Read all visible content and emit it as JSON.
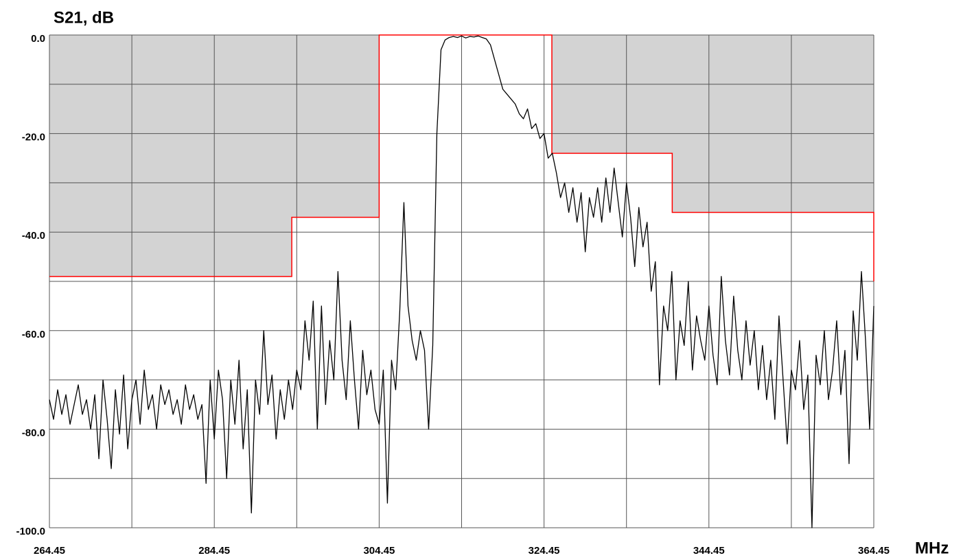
{
  "chart_data": {
    "type": "line",
    "title": "S21, dB",
    "x_label": "MHz",
    "xlim": [
      264.45,
      364.45
    ],
    "ylim": [
      -100,
      0
    ],
    "xticks": [
      264.45,
      284.45,
      304.45,
      324.45,
      344.45,
      364.45
    ],
    "yticks": [
      {
        "value": 0,
        "label": "0.0"
      },
      {
        "value": -20,
        "label": "-20.0"
      },
      {
        "value": -40,
        "label": "-40.0"
      },
      {
        "value": -60,
        "label": "-60.0"
      },
      {
        "value": -80,
        "label": "-80.0"
      },
      {
        "value": -100,
        "label": "-100.0"
      }
    ],
    "xgrid": [
      264.45,
      274.45,
      284.45,
      294.45,
      304.45,
      314.45,
      324.45,
      334.45,
      344.45,
      354.45,
      364.45
    ],
    "ygrid": [
      0,
      -10,
      -20,
      -30,
      -40,
      -50,
      -60,
      -70,
      -80,
      -90,
      -100
    ],
    "grid": true,
    "mask": {
      "color": "#ff0000",
      "fill": "#d3d3d3",
      "x": [
        264.45,
        293.85,
        293.85,
        304.45,
        304.45,
        325.4,
        325.4,
        340,
        340,
        364.45,
        364.45
      ],
      "values": [
        -49,
        -49,
        -37,
        -37,
        0,
        0,
        -24,
        -24,
        -36,
        -36,
        -50
      ]
    },
    "x": [
      264.45,
      264.95,
      265.45,
      265.95,
      266.45,
      266.95,
      267.45,
      267.95,
      268.45,
      268.95,
      269.45,
      269.95,
      270.45,
      270.95,
      271.45,
      271.95,
      272.45,
      272.95,
      273.45,
      273.95,
      274.45,
      274.95,
      275.45,
      275.95,
      276.45,
      276.95,
      277.45,
      277.95,
      278.45,
      278.95,
      279.45,
      279.95,
      280.45,
      280.95,
      281.45,
      281.95,
      282.45,
      282.95,
      283.45,
      283.95,
      284.45,
      284.95,
      285.45,
      285.95,
      286.45,
      286.95,
      287.45,
      287.95,
      288.45,
      288.95,
      289.45,
      289.95,
      290.45,
      290.95,
      291.45,
      291.95,
      292.45,
      292.95,
      293.45,
      293.95,
      294.45,
      294.95,
      295.45,
      295.95,
      296.45,
      296.95,
      297.45,
      297.95,
      298.45,
      298.95,
      299.45,
      299.95,
      300.45,
      300.95,
      301.45,
      301.95,
      302.45,
      302.95,
      303.45,
      303.95,
      304.45,
      304.95,
      305.45,
      305.95,
      306.45,
      306.95,
      307.45,
      307.95,
      308.45,
      308.95,
      309.45,
      309.95,
      310.45,
      310.95,
      311.45,
      311.95,
      312.45,
      312.95,
      313.45,
      313.95,
      314.45,
      314.95,
      315.45,
      315.95,
      316.45,
      316.95,
      317.45,
      317.95,
      318.45,
      318.95,
      319.45,
      319.95,
      320.45,
      320.95,
      321.45,
      321.95,
      322.45,
      322.95,
      323.45,
      323.95,
      324.45,
      324.95,
      325.45,
      325.95,
      326.45,
      326.95,
      327.45,
      327.95,
      328.45,
      328.95,
      329.45,
      329.95,
      330.45,
      330.95,
      331.45,
      331.95,
      332.45,
      332.95,
      333.45,
      333.95,
      334.45,
      334.95,
      335.45,
      335.95,
      336.45,
      336.95,
      337.45,
      337.95,
      338.45,
      338.95,
      339.45,
      339.95,
      340.45,
      340.95,
      341.45,
      341.95,
      342.45,
      342.95,
      343.45,
      343.95,
      344.45,
      344.95,
      345.45,
      345.95,
      346.45,
      346.95,
      347.45,
      347.95,
      348.45,
      348.95,
      349.45,
      349.95,
      350.45,
      350.95,
      351.45,
      351.95,
      352.45,
      352.95,
      353.45,
      353.95,
      354.45,
      354.95,
      355.45,
      355.95,
      356.45,
      356.95,
      357.45,
      357.95,
      358.45,
      358.95,
      359.45,
      359.95,
      360.45,
      360.95,
      361.45,
      361.95,
      362.45,
      362.95,
      363.45,
      363.95,
      364.45
    ],
    "series": [
      {
        "color": "#000000",
        "values": [
          -74,
          -78,
          -72,
          -77,
          -73,
          -79,
          -75,
          -71,
          -77,
          -74,
          -80,
          -73,
          -86,
          -70,
          -78,
          -88,
          -72,
          -81,
          -69,
          -84,
          -74,
          -70,
          -79,
          -68,
          -76,
          -73,
          -80,
          -71,
          -75,
          -72,
          -77,
          -74,
          -79,
          -71,
          -76,
          -73,
          -78,
          -75,
          -91,
          -70,
          -82,
          -68,
          -74,
          -90,
          -70,
          -79,
          -66,
          -84,
          -72,
          -97,
          -70,
          -77,
          -60,
          -75,
          -69,
          -82,
          -72,
          -78,
          -70,
          -76,
          -68,
          -72,
          -58,
          -66,
          -54,
          -80,
          -55,
          -75,
          -62,
          -70,
          -48,
          -66,
          -74,
          -58,
          -70,
          -80,
          -64,
          -73,
          -68,
          -76,
          -79,
          -68,
          -95,
          -66,
          -72,
          -56,
          -34,
          -55,
          -62,
          -66,
          -60,
          -64,
          -80,
          -63,
          -20,
          -3,
          -1,
          -0.5,
          -0.3,
          -0.5,
          -0.2,
          -0.6,
          -0.3,
          -0.4,
          -0.2,
          -0.5,
          -0.8,
          -2,
          -5,
          -8,
          -11,
          -12,
          -13,
          -14,
          -16,
          -17,
          -15,
          -19,
          -18,
          -21,
          -20,
          -25,
          -24,
          -28,
          -33,
          -30,
          -36,
          -31,
          -38,
          -32,
          -44,
          -33,
          -37,
          -31,
          -38,
          -29,
          -36,
          -27,
          -34,
          -41,
          -30,
          -37,
          -47,
          -35,
          -43,
          -38,
          -52,
          -46,
          -71,
          -55,
          -60,
          -48,
          -70,
          -58,
          -63,
          -50,
          -68,
          -57,
          -62,
          -66,
          -55,
          -65,
          -71,
          -49,
          -62,
          -69,
          -53,
          -64,
          -70,
          -58,
          -67,
          -60,
          -72,
          -63,
          -74,
          -66,
          -78,
          -57,
          -70,
          -83,
          -68,
          -72,
          -62,
          -76,
          -69,
          -100,
          -65,
          -71,
          -60,
          -74,
          -68,
          -58,
          -73,
          -64,
          -87,
          -56,
          -66,
          -48,
          -62,
          -80,
          -55
        ]
      }
    ]
  }
}
